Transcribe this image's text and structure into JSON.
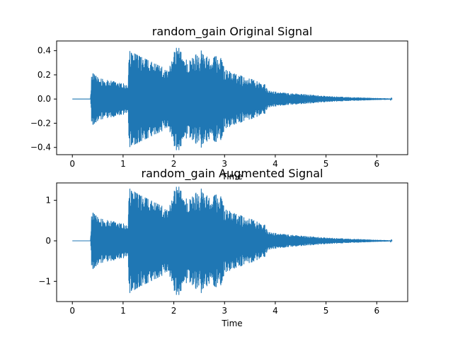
{
  "chart_data": [
    {
      "type": "line",
      "title": "random_gain Original Signal",
      "xlabel": "Time",
      "ylabel": "",
      "xlim": [
        -0.31,
        6.61
      ],
      "ylim": [
        -0.46,
        0.48
      ],
      "xticks": [
        0,
        1,
        2,
        3,
        4,
        5,
        6
      ],
      "yticks": [
        -0.4,
        -0.2,
        0.0,
        0.2,
        0.4
      ],
      "ytick_labels": [
        "−0.4",
        "−0.2",
        "0.0",
        "0.2",
        "0.4"
      ],
      "grid": false,
      "color": "#1f77b4",
      "series": [
        {
          "duration": 6.3,
          "envelope": [
            [
              0.0,
              0.0
            ],
            [
              0.36,
              0.0
            ],
            [
              0.38,
              0.22
            ],
            [
              0.55,
              0.17
            ],
            [
              0.9,
              0.14
            ],
            [
              1.1,
              0.12
            ],
            [
              1.12,
              0.4
            ],
            [
              1.3,
              0.36
            ],
            [
              1.6,
              0.3
            ],
            [
              1.9,
              0.24
            ],
            [
              2.05,
              0.45
            ],
            [
              2.3,
              0.31
            ],
            [
              2.5,
              0.42
            ],
            [
              2.7,
              0.33
            ],
            [
              2.9,
              0.37
            ],
            [
              3.0,
              0.25
            ],
            [
              3.2,
              0.21
            ],
            [
              3.5,
              0.17
            ],
            [
              3.8,
              0.12
            ],
            [
              3.85,
              0.07
            ],
            [
              4.2,
              0.05
            ],
            [
              4.6,
              0.04
            ],
            [
              5.0,
              0.025
            ],
            [
              5.5,
              0.015
            ],
            [
              6.0,
              0.008
            ],
            [
              6.3,
              0.004
            ]
          ]
        }
      ]
    },
    {
      "type": "line",
      "title": "random_gain Augmented Signal",
      "xlabel": "Time",
      "ylabel": "",
      "xlim": [
        -0.31,
        6.61
      ],
      "ylim": [
        -1.5,
        1.43
      ],
      "xticks": [
        0,
        1,
        2,
        3,
        4,
        5,
        6
      ],
      "yticks": [
        -1,
        0,
        1
      ],
      "ytick_labels": [
        "−1",
        "0",
        "1"
      ],
      "grid": false,
      "color": "#1f77b4",
      "series": [
        {
          "duration": 6.3,
          "envelope": [
            [
              0.0,
              0.0
            ],
            [
              0.36,
              0.0
            ],
            [
              0.38,
              0.72
            ],
            [
              0.55,
              0.55
            ],
            [
              0.9,
              0.46
            ],
            [
              1.1,
              0.4
            ],
            [
              1.12,
              1.3
            ],
            [
              1.3,
              1.15
            ],
            [
              1.6,
              0.97
            ],
            [
              1.9,
              0.78
            ],
            [
              2.05,
              1.42
            ],
            [
              2.3,
              1.0
            ],
            [
              2.5,
              1.35
            ],
            [
              2.7,
              1.05
            ],
            [
              2.9,
              1.2
            ],
            [
              3.0,
              0.8
            ],
            [
              3.2,
              0.68
            ],
            [
              3.5,
              0.55
            ],
            [
              3.8,
              0.39
            ],
            [
              3.85,
              0.22
            ],
            [
              4.2,
              0.16
            ],
            [
              4.6,
              0.12
            ],
            [
              5.0,
              0.08
            ],
            [
              5.5,
              0.05
            ],
            [
              6.0,
              0.025
            ],
            [
              6.3,
              0.012
            ]
          ]
        }
      ]
    }
  ]
}
